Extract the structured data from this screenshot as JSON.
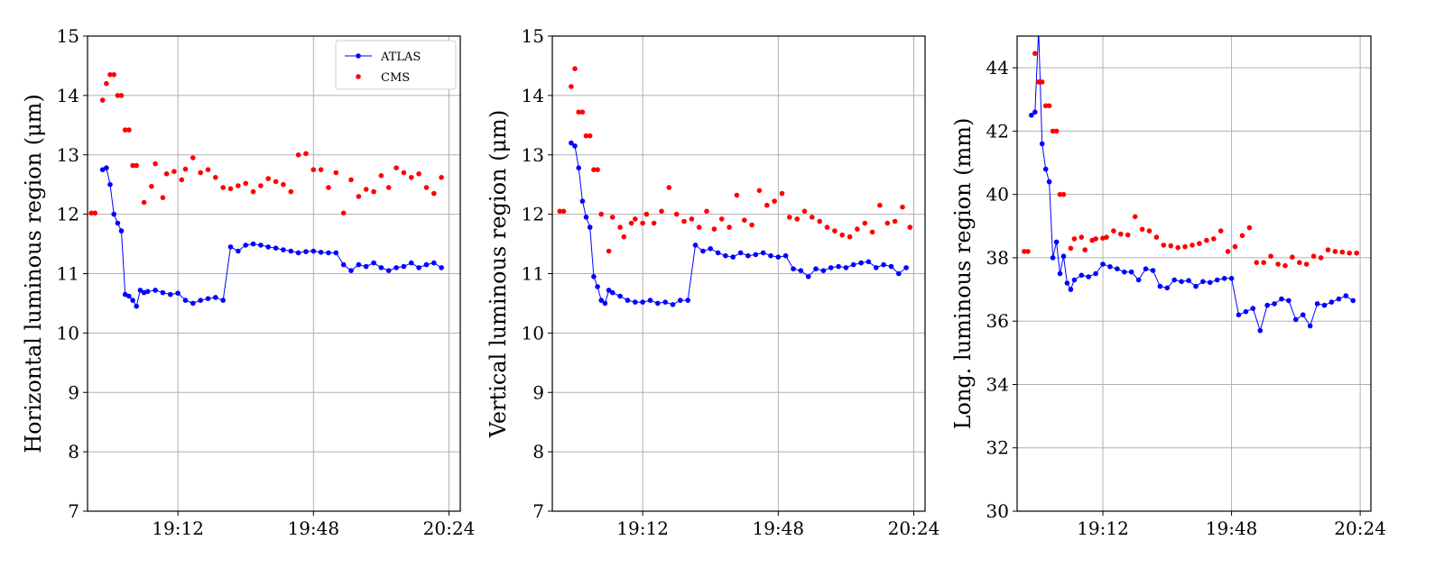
{
  "chart_data": [
    {
      "type": "line",
      "ylabel": "Horizontal luminous region (μm)",
      "xlabel": "",
      "x_range": [
        "18:48",
        "20:27"
      ],
      "ylim": [
        7,
        15
      ],
      "yticks": [
        7,
        8,
        9,
        10,
        11,
        12,
        13,
        14,
        15
      ],
      "xticks": [
        "19:12",
        "19:48",
        "20:24"
      ],
      "grid": true,
      "legend": {
        "placement": "top-right",
        "entries": [
          "ATLAS",
          "CMS"
        ]
      },
      "series": [
        {
          "name": "ATLAS",
          "color": "#0000ff",
          "style": "line-markers",
          "x": [
            "18:52",
            "18:53",
            "18:54",
            "18:55",
            "18:56",
            "18:57",
            "18:58",
            "18:59",
            "19:00",
            "19:01",
            "19:02",
            "19:03",
            "19:04",
            "19:06",
            "19:08",
            "19:10",
            "19:12",
            "19:14",
            "19:16",
            "19:18",
            "19:20",
            "19:22",
            "19:24",
            "19:26",
            "19:28",
            "19:30",
            "19:32",
            "19:34",
            "19:36",
            "19:38",
            "19:40",
            "19:42",
            "19:44",
            "19:46",
            "19:48",
            "19:50",
            "19:52",
            "19:54",
            "19:56",
            "19:58",
            "20:00",
            "20:02",
            "20:04",
            "20:06",
            "20:08",
            "20:10",
            "20:12",
            "20:14",
            "20:16",
            "20:18",
            "20:20",
            "20:22"
          ],
          "values": [
            12.75,
            12.78,
            12.5,
            12.0,
            11.85,
            11.72,
            10.65,
            10.62,
            10.55,
            10.45,
            10.72,
            10.68,
            10.7,
            10.72,
            10.68,
            10.65,
            10.67,
            10.55,
            10.5,
            10.55,
            10.58,
            10.6,
            10.55,
            11.45,
            11.38,
            11.48,
            11.5,
            11.48,
            11.45,
            11.43,
            11.4,
            11.38,
            11.35,
            11.37,
            11.38,
            11.36,
            11.35,
            11.35,
            11.15,
            11.05,
            11.15,
            11.12,
            11.18,
            11.1,
            11.05,
            11.1,
            11.12,
            11.18,
            11.1,
            11.15,
            11.18,
            11.1
          ]
        },
        {
          "name": "CMS",
          "color": "#ff0000",
          "style": "markers",
          "x": [
            "18:49",
            "18:50",
            "18:52",
            "18:53",
            "18:54",
            "18:55",
            "18:56",
            "18:57",
            "18:58",
            "18:59",
            "19:00",
            "19:01",
            "19:03",
            "19:05",
            "19:06",
            "19:08",
            "19:09",
            "19:11",
            "19:13",
            "19:14",
            "19:16",
            "19:18",
            "19:20",
            "19:22",
            "19:24",
            "19:26",
            "19:28",
            "19:30",
            "19:32",
            "19:34",
            "19:36",
            "19:38",
            "19:40",
            "19:42",
            "19:44",
            "19:46",
            "19:48",
            "19:50",
            "19:52",
            "19:54",
            "19:56",
            "19:58",
            "20:00",
            "20:02",
            "20:04",
            "20:06",
            "20:08",
            "20:10",
            "20:12",
            "20:14",
            "20:16",
            "20:18",
            "20:20",
            "20:22"
          ],
          "values": [
            12.02,
            12.02,
            13.92,
            14.2,
            14.35,
            14.35,
            14.0,
            14.0,
            13.42,
            13.42,
            12.82,
            12.82,
            12.2,
            12.47,
            12.85,
            12.28,
            12.68,
            12.72,
            12.58,
            12.76,
            12.95,
            12.7,
            12.75,
            12.62,
            12.45,
            12.43,
            12.48,
            12.52,
            12.38,
            12.48,
            12.6,
            12.55,
            12.5,
            12.38,
            13.0,
            13.02,
            12.75,
            12.75,
            12.45,
            12.7,
            12.02,
            12.58,
            12.3,
            12.42,
            12.38,
            12.65,
            12.45,
            12.78,
            12.7,
            12.62,
            12.68,
            12.45,
            12.35,
            12.62
          ]
        }
      ]
    },
    {
      "type": "line",
      "ylabel": "Vertical luminous region (μm)",
      "xlabel": "",
      "x_range": [
        "18:48",
        "20:27"
      ],
      "ylim": [
        7,
        15
      ],
      "yticks": [
        7,
        8,
        9,
        10,
        11,
        12,
        13,
        14,
        15
      ],
      "xticks": [
        "19:12",
        "19:48",
        "20:24"
      ],
      "grid": true,
      "series": [
        {
          "name": "ATLAS",
          "color": "#0000ff",
          "style": "line-markers",
          "x": [
            "18:53",
            "18:54",
            "18:55",
            "18:56",
            "18:57",
            "18:58",
            "18:59",
            "19:00",
            "19:01",
            "19:02",
            "19:03",
            "19:04",
            "19:06",
            "19:08",
            "19:10",
            "19:12",
            "19:14",
            "19:16",
            "19:18",
            "19:20",
            "19:22",
            "19:24",
            "19:26",
            "19:28",
            "19:30",
            "19:32",
            "19:34",
            "19:36",
            "19:38",
            "19:40",
            "19:42",
            "19:44",
            "19:46",
            "19:48",
            "19:50",
            "19:52",
            "19:54",
            "19:56",
            "19:58",
            "20:00",
            "20:02",
            "20:04",
            "20:06",
            "20:08",
            "20:10",
            "20:12",
            "20:14",
            "20:16",
            "20:18",
            "20:20",
            "20:22"
          ],
          "values": [
            13.2,
            13.15,
            12.78,
            12.22,
            11.95,
            11.78,
            10.95,
            10.78,
            10.55,
            10.5,
            10.72,
            10.68,
            10.62,
            10.55,
            10.52,
            10.52,
            10.55,
            10.5,
            10.52,
            10.48,
            10.55,
            10.55,
            11.48,
            11.38,
            11.42,
            11.35,
            11.3,
            11.28,
            11.35,
            11.3,
            11.32,
            11.35,
            11.3,
            11.28,
            11.3,
            11.08,
            11.05,
            10.95,
            11.08,
            11.05,
            11.1,
            11.12,
            11.1,
            11.15,
            11.18,
            11.2,
            11.1,
            11.15,
            11.12,
            11.0,
            11.1
          ]
        },
        {
          "name": "CMS",
          "color": "#ff0000",
          "style": "markers",
          "x": [
            "18:50",
            "18:51",
            "18:53",
            "18:54",
            "18:55",
            "18:56",
            "18:57",
            "18:58",
            "18:59",
            "19:00",
            "19:01",
            "19:03",
            "19:04",
            "19:06",
            "19:07",
            "19:09",
            "19:10",
            "19:12",
            "19:13",
            "19:15",
            "19:17",
            "19:19",
            "19:21",
            "19:23",
            "19:25",
            "19:27",
            "19:29",
            "19:31",
            "19:33",
            "19:35",
            "19:37",
            "19:39",
            "19:41",
            "19:43",
            "19:45",
            "19:47",
            "19:49",
            "19:51",
            "19:53",
            "19:55",
            "19:57",
            "19:59",
            "20:01",
            "20:03",
            "20:05",
            "20:07",
            "20:09",
            "20:11",
            "20:13",
            "20:15",
            "20:17",
            "20:19",
            "20:21",
            "20:23"
          ],
          "values": [
            12.05,
            12.05,
            14.15,
            14.45,
            13.72,
            13.72,
            13.32,
            13.32,
            12.75,
            12.75,
            12.0,
            11.38,
            11.95,
            11.78,
            11.62,
            11.85,
            11.92,
            11.85,
            12.0,
            11.85,
            12.05,
            12.45,
            12.0,
            11.88,
            11.92,
            11.78,
            12.05,
            11.75,
            11.92,
            11.78,
            12.32,
            11.9,
            11.82,
            12.4,
            12.15,
            12.22,
            12.35,
            11.95,
            11.92,
            12.05,
            11.95,
            11.88,
            11.78,
            11.72,
            11.65,
            11.62,
            11.75,
            11.85,
            11.7,
            12.15,
            11.85,
            11.88,
            12.12,
            11.78
          ]
        }
      ]
    },
    {
      "type": "line",
      "ylabel": "Long. luminous region (mm)",
      "xlabel": "",
      "x_range": [
        "18:48",
        "20:27"
      ],
      "ylim": [
        30,
        45
      ],
      "yticks": [
        30,
        32,
        34,
        36,
        38,
        40,
        42,
        44
      ],
      "xticks": [
        "19:12",
        "19:48",
        "20:24"
      ],
      "grid": true,
      "series": [
        {
          "name": "ATLAS",
          "color": "#0000ff",
          "style": "line-markers",
          "x": [
            "18:52",
            "18:53",
            "18:54",
            "18:55",
            "18:56",
            "18:57",
            "18:58",
            "18:59",
            "19:00",
            "19:01",
            "19:02",
            "19:03",
            "19:04",
            "19:06",
            "19:08",
            "19:10",
            "19:12",
            "19:14",
            "19:16",
            "19:18",
            "19:20",
            "19:22",
            "19:24",
            "19:26",
            "19:28",
            "19:30",
            "19:32",
            "19:34",
            "19:36",
            "19:38",
            "19:40",
            "19:42",
            "19:44",
            "19:46",
            "19:48",
            "19:50",
            "19:52",
            "19:54",
            "19:56",
            "19:58",
            "20:00",
            "20:02",
            "20:04",
            "20:06",
            "20:08",
            "20:10",
            "20:12",
            "20:14",
            "20:16",
            "20:18",
            "20:20",
            "20:22"
          ],
          "values": [
            42.5,
            42.6,
            45.2,
            41.6,
            40.8,
            40.4,
            38.0,
            38.5,
            37.5,
            38.05,
            37.2,
            37.0,
            37.3,
            37.45,
            37.4,
            37.5,
            37.8,
            37.72,
            37.65,
            37.55,
            37.55,
            37.3,
            37.65,
            37.6,
            37.1,
            37.05,
            37.3,
            37.25,
            37.28,
            37.1,
            37.25,
            37.22,
            37.3,
            37.35,
            37.35,
            36.2,
            36.3,
            36.4,
            35.7,
            36.5,
            36.55,
            36.7,
            36.65,
            36.05,
            36.2,
            35.85,
            36.55,
            36.5,
            36.6,
            36.7,
            36.8,
            36.65
          ]
        },
        {
          "name": "CMS",
          "color": "#ff0000",
          "style": "markers",
          "x": [
            "18:50",
            "18:51",
            "18:53",
            "18:54",
            "18:55",
            "18:56",
            "18:57",
            "18:58",
            "18:59",
            "19:00",
            "19:01",
            "19:03",
            "19:04",
            "19:06",
            "19:07",
            "19:09",
            "19:10",
            "19:12",
            "19:13",
            "19:15",
            "19:17",
            "19:19",
            "19:21",
            "19:23",
            "19:25",
            "19:27",
            "19:29",
            "19:31",
            "19:33",
            "19:35",
            "19:37",
            "19:39",
            "19:41",
            "19:43",
            "19:45",
            "19:47",
            "19:49",
            "19:51",
            "19:53",
            "19:55",
            "19:57",
            "19:59",
            "20:01",
            "20:03",
            "20:05",
            "20:07",
            "20:09",
            "20:11",
            "20:13",
            "20:15",
            "20:17",
            "20:19",
            "20:21",
            "20:23"
          ],
          "values": [
            38.2,
            38.2,
            44.45,
            43.55,
            43.55,
            42.8,
            42.8,
            42.0,
            42.0,
            40.0,
            40.0,
            38.3,
            38.6,
            38.65,
            38.25,
            38.55,
            38.6,
            38.62,
            38.65,
            38.85,
            38.75,
            38.72,
            39.3,
            38.9,
            38.85,
            38.65,
            38.4,
            38.38,
            38.32,
            38.35,
            38.4,
            38.45,
            38.55,
            38.6,
            38.85,
            38.2,
            38.35,
            38.7,
            38.95,
            37.85,
            37.85,
            38.05,
            37.8,
            37.75,
            38.02,
            37.85,
            37.8,
            38.05,
            38.0,
            38.25,
            38.2,
            38.18,
            38.15,
            38.15
          ]
        }
      ]
    }
  ]
}
